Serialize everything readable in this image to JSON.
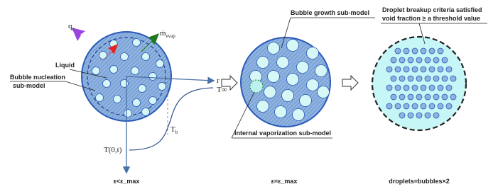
{
  "panel1": {
    "heat_flux": {
      "base": "q",
      "sub": "e"
    },
    "evaporation": {
      "base": "ṁ",
      "sub": "evap"
    },
    "liquid_label": "Liquid",
    "nucleation_label": [
      "Bubble nucleation",
      "sub-model"
    ],
    "radius_axis": "r",
    "t_infinity": "T∞",
    "t_bubble": {
      "base": "T",
      "sub": "b"
    },
    "t_center": "T(0,t)",
    "caption": "ε<ε_max"
  },
  "panel2": {
    "growth_label": "Bubble growth sub-model",
    "vaporization_label": "Internal vaporization sub-model",
    "caption": "ε=ε_max"
  },
  "panel3": {
    "criteria_label": [
      "Droplet breakup criteria satisfied",
      "void fraction ≥ a threshold value"
    ],
    "caption": "droplets=bubbles×2"
  }
}
